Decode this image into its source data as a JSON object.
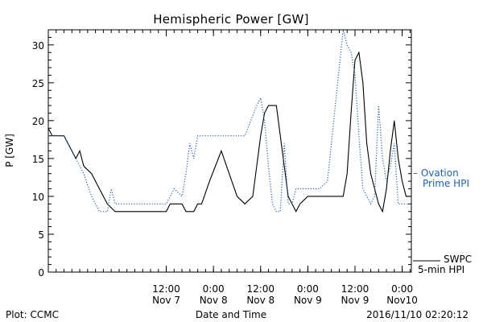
{
  "chart_data": {
    "type": "line",
    "title": "Hemispheric Power [GW]",
    "ylabel": "P [GW]",
    "xlabel": "Date and Time",
    "ylim": [
      0,
      32
    ],
    "xlim": [
      "2016-11-06T06:00",
      "2016-11-10T02:20"
    ],
    "y_ticks": [
      0,
      5,
      10,
      15,
      20,
      25,
      30
    ],
    "x_ticks": [
      {
        "at": "2016-11-07T12:00",
        "time": "12:00",
        "date": "Nov 7"
      },
      {
        "at": "2016-11-08T00:00",
        "time": "0:00",
        "date": "Nov 8"
      },
      {
        "at": "2016-11-08T12:00",
        "time": "12:00",
        "date": "Nov 8"
      },
      {
        "at": "2016-11-09T00:00",
        "time": "0:00",
        "date": "Nov 9"
      },
      {
        "at": "2016-11-09T12:00",
        "time": "12:00",
        "date": "Nov 9"
      },
      {
        "at": "2016-11-10T00:00",
        "time": "0:00",
        "date": "Nov10"
      }
    ],
    "grid": false,
    "legend_placement": "right",
    "series": [
      {
        "name": "SWPC 5-min HPI",
        "legend_lines": [
          "SWPC",
          "5-min HPI"
        ],
        "color": "#000000",
        "style": "solid",
        "points": [
          [
            "2016-11-06T06:00",
            19
          ],
          [
            "2016-11-06T07:00",
            18
          ],
          [
            "2016-11-06T10:00",
            18
          ],
          [
            "2016-11-06T11:00",
            17
          ],
          [
            "2016-11-06T13:00",
            15
          ],
          [
            "2016-11-06T14:00",
            16
          ],
          [
            "2016-11-06T15:00",
            14
          ],
          [
            "2016-11-06T17:00",
            13
          ],
          [
            "2016-11-06T19:00",
            11
          ],
          [
            "2016-11-06T21:00",
            9
          ],
          [
            "2016-11-06T23:00",
            8
          ],
          [
            "2016-11-07T12:00",
            8
          ],
          [
            "2016-11-07T13:00",
            9
          ],
          [
            "2016-11-07T16:00",
            9
          ],
          [
            "2016-11-07T17:00",
            8
          ],
          [
            "2016-11-07T19:00",
            8
          ],
          [
            "2016-11-07T20:00",
            9
          ],
          [
            "2016-11-07T21:00",
            9
          ],
          [
            "2016-11-07T23:00",
            12
          ],
          [
            "2016-11-08T02:00",
            16
          ],
          [
            "2016-11-08T04:00",
            13
          ],
          [
            "2016-11-08T06:00",
            10
          ],
          [
            "2016-11-08T08:00",
            9
          ],
          [
            "2016-11-08T10:00",
            10
          ],
          [
            "2016-11-08T12:00",
            18
          ],
          [
            "2016-11-08T13:00",
            21
          ],
          [
            "2016-11-08T14:00",
            22
          ],
          [
            "2016-11-08T16:00",
            22
          ],
          [
            "2016-11-08T17:00",
            18
          ],
          [
            "2016-11-08T18:00",
            14
          ],
          [
            "2016-11-08T19:00",
            10
          ],
          [
            "2016-11-08T20:00",
            9
          ],
          [
            "2016-11-08T21:00",
            8
          ],
          [
            "2016-11-08T22:00",
            9
          ],
          [
            "2016-11-09T00:00",
            10
          ],
          [
            "2016-11-09T03:00",
            10
          ],
          [
            "2016-11-09T06:00",
            10
          ],
          [
            "2016-11-09T09:00",
            10
          ],
          [
            "2016-11-09T10:00",
            13
          ],
          [
            "2016-11-09T11:00",
            21
          ],
          [
            "2016-11-09T12:00",
            28
          ],
          [
            "2016-11-09T13:00",
            29
          ],
          [
            "2016-11-09T14:00",
            25
          ],
          [
            "2016-11-09T15:00",
            17
          ],
          [
            "2016-11-09T16:00",
            13
          ],
          [
            "2016-11-09T17:00",
            11
          ],
          [
            "2016-11-09T18:00",
            9
          ],
          [
            "2016-11-09T19:00",
            8
          ],
          [
            "2016-11-09T20:00",
            11
          ],
          [
            "2016-11-09T21:00",
            16
          ],
          [
            "2016-11-09T22:00",
            20
          ],
          [
            "2016-11-09T23:00",
            15
          ],
          [
            "2016-11-10T00:00",
            12
          ],
          [
            "2016-11-10T01:00",
            10
          ],
          [
            "2016-11-10T02:20",
            10
          ]
        ]
      },
      {
        "name": "Ovation Prime HPI",
        "legend_lines": [
          "– Ovation",
          "Prime HPI"
        ],
        "color": "#1f5fb4",
        "style": "dotted",
        "points": [
          [
            "2016-11-06T06:00",
            18
          ],
          [
            "2016-11-06T10:00",
            18
          ],
          [
            "2016-11-06T11:00",
            17
          ],
          [
            "2016-11-06T13:00",
            15
          ],
          [
            "2016-11-06T15:00",
            13
          ],
          [
            "2016-11-06T17:00",
            10
          ],
          [
            "2016-11-06T19:00",
            8
          ],
          [
            "2016-11-06T21:00",
            8
          ],
          [
            "2016-11-06T22:00",
            11
          ],
          [
            "2016-11-06T23:00",
            9
          ],
          [
            "2016-11-07T12:00",
            9
          ],
          [
            "2016-11-07T14:00",
            11
          ],
          [
            "2016-11-07T16:00",
            10
          ],
          [
            "2016-11-07T17:00",
            13
          ],
          [
            "2016-11-07T18:00",
            17
          ],
          [
            "2016-11-07T19:00",
            15
          ],
          [
            "2016-11-07T20:00",
            18
          ],
          [
            "2016-11-08T02:00",
            18
          ],
          [
            "2016-11-08T08:00",
            18
          ],
          [
            "2016-11-08T11:00",
            22
          ],
          [
            "2016-11-08T12:00",
            23
          ],
          [
            "2016-11-08T13:00",
            20
          ],
          [
            "2016-11-08T14:00",
            14
          ],
          [
            "2016-11-08T15:00",
            9
          ],
          [
            "2016-11-08T16:00",
            8
          ],
          [
            "2016-11-08T17:00",
            8
          ],
          [
            "2016-11-08T18:00",
            17
          ],
          [
            "2016-11-08T19:00",
            9
          ],
          [
            "2016-11-08T20:00",
            9
          ],
          [
            "2016-11-08T21:00",
            11
          ],
          [
            "2016-11-09T00:00",
            11
          ],
          [
            "2016-11-09T03:00",
            11
          ],
          [
            "2016-11-09T05:00",
            12
          ],
          [
            "2016-11-09T09:00",
            32
          ],
          [
            "2016-11-09T10:00",
            30
          ],
          [
            "2016-11-09T11:00",
            29
          ],
          [
            "2016-11-09T12:00",
            26
          ],
          [
            "2016-11-09T13:00",
            18
          ],
          [
            "2016-11-09T14:00",
            11
          ],
          [
            "2016-11-09T15:00",
            10
          ],
          [
            "2016-11-09T16:00",
            9
          ],
          [
            "2016-11-09T17:00",
            10
          ],
          [
            "2016-11-09T18:00",
            22
          ],
          [
            "2016-11-09T19:00",
            15
          ],
          [
            "2016-11-09T20:00",
            12
          ],
          [
            "2016-11-09T21:00",
            14
          ],
          [
            "2016-11-09T22:00",
            17
          ],
          [
            "2016-11-09T23:00",
            9
          ],
          [
            "2016-11-10T02:20",
            9
          ]
        ]
      }
    ]
  },
  "footer": {
    "left": "Plot: CCMC",
    "right": "2016/11/10 02:20:12"
  }
}
